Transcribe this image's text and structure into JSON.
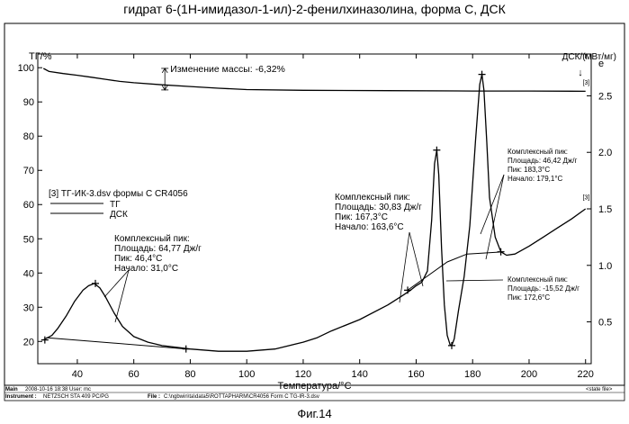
{
  "figure": {
    "title": "гидрат 6-(1Н-имидазол-1-ил)-2-фенилхиназолина, форма С, ДСК",
    "caption": "Фиг.14"
  },
  "footer": {
    "main_label": "Main",
    "main_value": "2008-10-16 18:38   User: mc",
    "state_label": "<state file>",
    "instrument_label": "Instrument :",
    "instrument_value": "NETZSCH STA 409 PC/PG",
    "file_label": "File :",
    "file_value": "C:\\ngbwin\\ta\\data5\\ROTTAPHARM\\CR4056  Form C TG-IR-3.dsv"
  },
  "chart_data": {
    "type": "line",
    "xlabel": "Температура/°C",
    "ylabel_left": "ТГ/%",
    "ylabel_right": "ДСК/(мВт/мг)",
    "right_axis_marker": "↓",
    "right_axis_exo": "e",
    "xlim": [
      26,
      222
    ],
    "ylim_left": [
      13.5,
      104
    ],
    "ylim_right": [
      0.13,
      2.87
    ],
    "x_ticks": [
      "40",
      "60",
      "80",
      "100",
      "120",
      "140",
      "160",
      "180",
      "200",
      "220"
    ],
    "y_ticks_left": [
      "20",
      "30",
      "40",
      "50",
      "60",
      "70",
      "80",
      "90",
      "100"
    ],
    "y_ticks_right": [
      "0.5",
      "1.0",
      "1.5",
      "2.0",
      "2.5"
    ],
    "series": [
      {
        "name": "ТГ",
        "axis": "left",
        "points": [
          [
            28,
            99.8
          ],
          [
            30,
            98.9
          ],
          [
            35,
            98.3
          ],
          [
            40,
            97.8
          ],
          [
            45,
            97.2
          ],
          [
            50,
            96.6
          ],
          [
            55,
            96.0
          ],
          [
            60,
            95.6
          ],
          [
            70,
            95.0
          ],
          [
            80,
            94.5
          ],
          [
            90,
            94.0
          ],
          [
            100,
            93.6
          ],
          [
            120,
            93.4
          ],
          [
            150,
            93.3
          ],
          [
            180,
            93.2
          ],
          [
            200,
            93.2
          ],
          [
            220,
            93.1
          ]
        ]
      },
      {
        "name": "ДСК",
        "axis": "right",
        "points": [
          [
            28,
            0.34
          ],
          [
            31,
            0.38
          ],
          [
            33,
            0.44
          ],
          [
            36,
            0.55
          ],
          [
            39,
            0.68
          ],
          [
            42,
            0.78
          ],
          [
            44,
            0.82
          ],
          [
            46,
            0.84
          ],
          [
            48,
            0.8
          ],
          [
            50,
            0.72
          ],
          [
            53,
            0.58
          ],
          [
            56,
            0.46
          ],
          [
            60,
            0.37
          ],
          [
            65,
            0.32
          ],
          [
            70,
            0.29
          ],
          [
            80,
            0.26
          ],
          [
            90,
            0.24
          ],
          [
            100,
            0.24
          ],
          [
            110,
            0.26
          ],
          [
            120,
            0.32
          ],
          [
            125,
            0.36
          ],
          [
            130,
            0.42
          ],
          [
            140,
            0.52
          ],
          [
            150,
            0.65
          ],
          [
            155,
            0.73
          ],
          [
            158,
            0.78
          ],
          [
            160,
            0.82
          ],
          [
            162,
            0.85
          ],
          [
            164,
            0.95
          ],
          [
            165.5,
            1.4
          ],
          [
            166.5,
            1.9
          ],
          [
            167.3,
            2.02
          ],
          [
            168,
            1.8
          ],
          [
            169,
            1.15
          ],
          [
            170,
            0.65
          ],
          [
            171,
            0.38
          ],
          [
            172,
            0.3
          ],
          [
            172.6,
            0.29
          ],
          [
            173.5,
            0.35
          ],
          [
            175,
            0.6
          ],
          [
            177,
            0.9
          ],
          [
            179,
            1.35
          ],
          [
            181,
            2.1
          ],
          [
            182.5,
            2.6
          ],
          [
            183.3,
            2.69
          ],
          [
            184,
            2.55
          ],
          [
            185,
            2.1
          ],
          [
            186,
            1.6
          ],
          [
            188,
            1.25
          ],
          [
            190,
            1.12
          ],
          [
            192,
            1.09
          ],
          [
            195,
            1.1
          ],
          [
            200,
            1.17
          ],
          [
            205,
            1.25
          ],
          [
            210,
            1.33
          ],
          [
            215,
            1.41
          ],
          [
            220,
            1.5
          ]
        ]
      }
    ],
    "legend": {
      "title": "[3] ТГ-ИК-3.dsv формы С CR4056",
      "items": [
        "ТГ",
        "ДСК"
      ]
    },
    "tg_step": {
      "label": "Изменение массы: -6,32%",
      "x": 71,
      "y_top": 99.8,
      "y_bottom": 93.5
    },
    "curve_tags": [
      {
        "label": "[3]",
        "series": "ТГ",
        "x": 219,
        "y": 95.0
      },
      {
        "label": "[3]",
        "series": "ДСК",
        "x": 219,
        "y": 61.5
      }
    ],
    "annotations": [
      {
        "lines": [
          "Комплексный пик:",
          "Площадь: 64,77 Дж/г",
          "Пик: 46,4°C",
          "Начало: 31,0°C"
        ],
        "size": "large"
      },
      {
        "lines": [
          "Комплексный пик:",
          "Площадь: 30,83 Дж/г",
          "Пик: 167,3°C",
          "Начало: 163,6°C"
        ],
        "size": "large"
      },
      {
        "lines": [
          "Комплексный пик:",
          "Площадь: 46,42 Дж/г",
          "Пик: 183,3°C",
          "Начало: 179,1°C"
        ],
        "size": "small"
      },
      {
        "lines": [
          "Комплексный пик:",
          "Площадь: -15,52 Дж/г",
          "Пик: 172,6°C"
        ],
        "size": "small"
      }
    ],
    "peak_markers": [
      {
        "series": "ДСК",
        "x": 28.5,
        "y": 0.34
      },
      {
        "series": "ДСК",
        "x": 46.4,
        "y": 0.84
      },
      {
        "series": "ДСК",
        "x": 78.5,
        "y": 0.26
      },
      {
        "series": "ДСК",
        "x": 157.0,
        "y": 0.78
      },
      {
        "series": "ДСК",
        "x": 167.3,
        "y": 2.02
      },
      {
        "series": "ДСК",
        "x": 172.6,
        "y": 0.29
      },
      {
        "series": "ДСК",
        "x": 183.3,
        "y": 2.69
      },
      {
        "series": "ДСК",
        "x": 190.0,
        "y": 1.12
      }
    ],
    "baselines": [
      {
        "series": "ДСК",
        "points": [
          [
            29,
            0.36
          ],
          [
            79,
            0.26
          ]
        ]
      },
      {
        "series": "ДСК",
        "points": [
          [
            157,
            0.78
          ],
          [
            171,
            1.03
          ],
          [
            178,
            1.1
          ],
          [
            191,
            1.12
          ]
        ]
      }
    ]
  }
}
